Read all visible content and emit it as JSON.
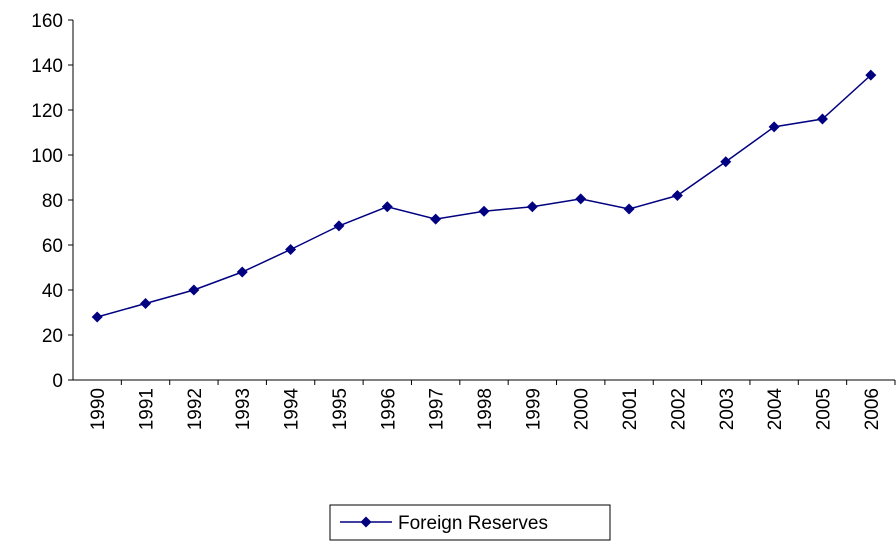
{
  "chart_data": {
    "type": "line",
    "categories": [
      "1990",
      "1991",
      "1992",
      "1993",
      "1994",
      "1995",
      "1996",
      "1997",
      "1998",
      "1999",
      "2000",
      "2001",
      "2002",
      "2003",
      "2004",
      "2005",
      "2006"
    ],
    "series": [
      {
        "name": "Foreign Reserves",
        "color": "#000080",
        "values": [
          28,
          34,
          40,
          48,
          58,
          68.5,
          77,
          71.5,
          75,
          77,
          80.5,
          76,
          82,
          97,
          112.5,
          116,
          135.5
        ]
      }
    ],
    "ylim": [
      0,
      160
    ],
    "yticks": [
      0,
      20,
      40,
      60,
      80,
      100,
      120,
      140,
      160
    ],
    "grid": false,
    "legend": "bottom"
  }
}
